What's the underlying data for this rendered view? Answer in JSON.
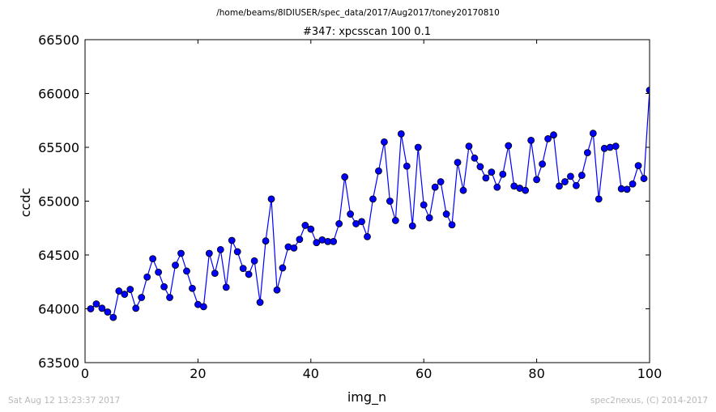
{
  "suptitle": "/home/beams/8IDIUSER/spec_data/2017/Aug2017/toney20170810",
  "footer": {
    "left": "Sat Aug 12 13:23:37 2017",
    "right": "spec2nexus, (C) 2014-2017"
  },
  "chart_data": {
    "type": "line",
    "title": "#347: xpcsscan 100 0.1",
    "xlabel": "img_n",
    "ylabel": "ccdc",
    "xlim": [
      0,
      100
    ],
    "ylim": [
      63500,
      66500
    ],
    "xticks": [
      0,
      20,
      40,
      60,
      80,
      100
    ],
    "yticks": [
      63500,
      64000,
      64500,
      65000,
      65500,
      66000,
      66500
    ],
    "grid": false,
    "line_color": "#0000ff",
    "marker_color": "#0000ff",
    "marker": "circle",
    "x": [
      1,
      2,
      3,
      4,
      5,
      6,
      7,
      8,
      9,
      10,
      11,
      12,
      13,
      14,
      15,
      16,
      17,
      18,
      19,
      20,
      21,
      22,
      23,
      24,
      25,
      26,
      27,
      28,
      29,
      30,
      31,
      32,
      33,
      34,
      35,
      36,
      37,
      38,
      39,
      40,
      41,
      42,
      43,
      44,
      45,
      46,
      47,
      48,
      49,
      50,
      51,
      52,
      53,
      54,
      55,
      56,
      57,
      58,
      59,
      60,
      61,
      62,
      63,
      64,
      65,
      66,
      67,
      68,
      69,
      70,
      71,
      72,
      73,
      74,
      75,
      76,
      77,
      78,
      79,
      80,
      81,
      82,
      83,
      84,
      85,
      86,
      87,
      88,
      89,
      90,
      91,
      92,
      93,
      94,
      95,
      96,
      97,
      98,
      99,
      100
    ],
    "y": [
      64000,
      64045,
      64005,
      63970,
      63920,
      64165,
      64135,
      64180,
      64005,
      64105,
      64295,
      64465,
      64340,
      64205,
      64105,
      64405,
      64515,
      64350,
      64190,
      64040,
      64020,
      64515,
      64330,
      64550,
      64200,
      64635,
      64530,
      64375,
      64320,
      64445,
      64060,
      64630,
      65020,
      64175,
      64380,
      64575,
      64565,
      64645,
      64775,
      64740,
      64615,
      64640,
      64625,
      64625,
      64790,
      65225,
      64880,
      64790,
      64810,
      64670,
      65020,
      65280,
      65550,
      65000,
      64820,
      65625,
      65325,
      64770,
      65500,
      64965,
      64845,
      65130,
      65180,
      64880,
      64780,
      65360,
      65100,
      65510,
      65400,
      65320,
      65215,
      65270,
      65130,
      65250,
      65515,
      65140,
      65120,
      65100,
      65565,
      65200,
      65345,
      65580,
      65615,
      65140,
      65180,
      65230,
      65145,
      65240,
      65450,
      65630,
      65020,
      65490,
      65500,
      65510,
      65115,
      65110,
      65160,
      65330,
      65210,
      66030
    ]
  }
}
